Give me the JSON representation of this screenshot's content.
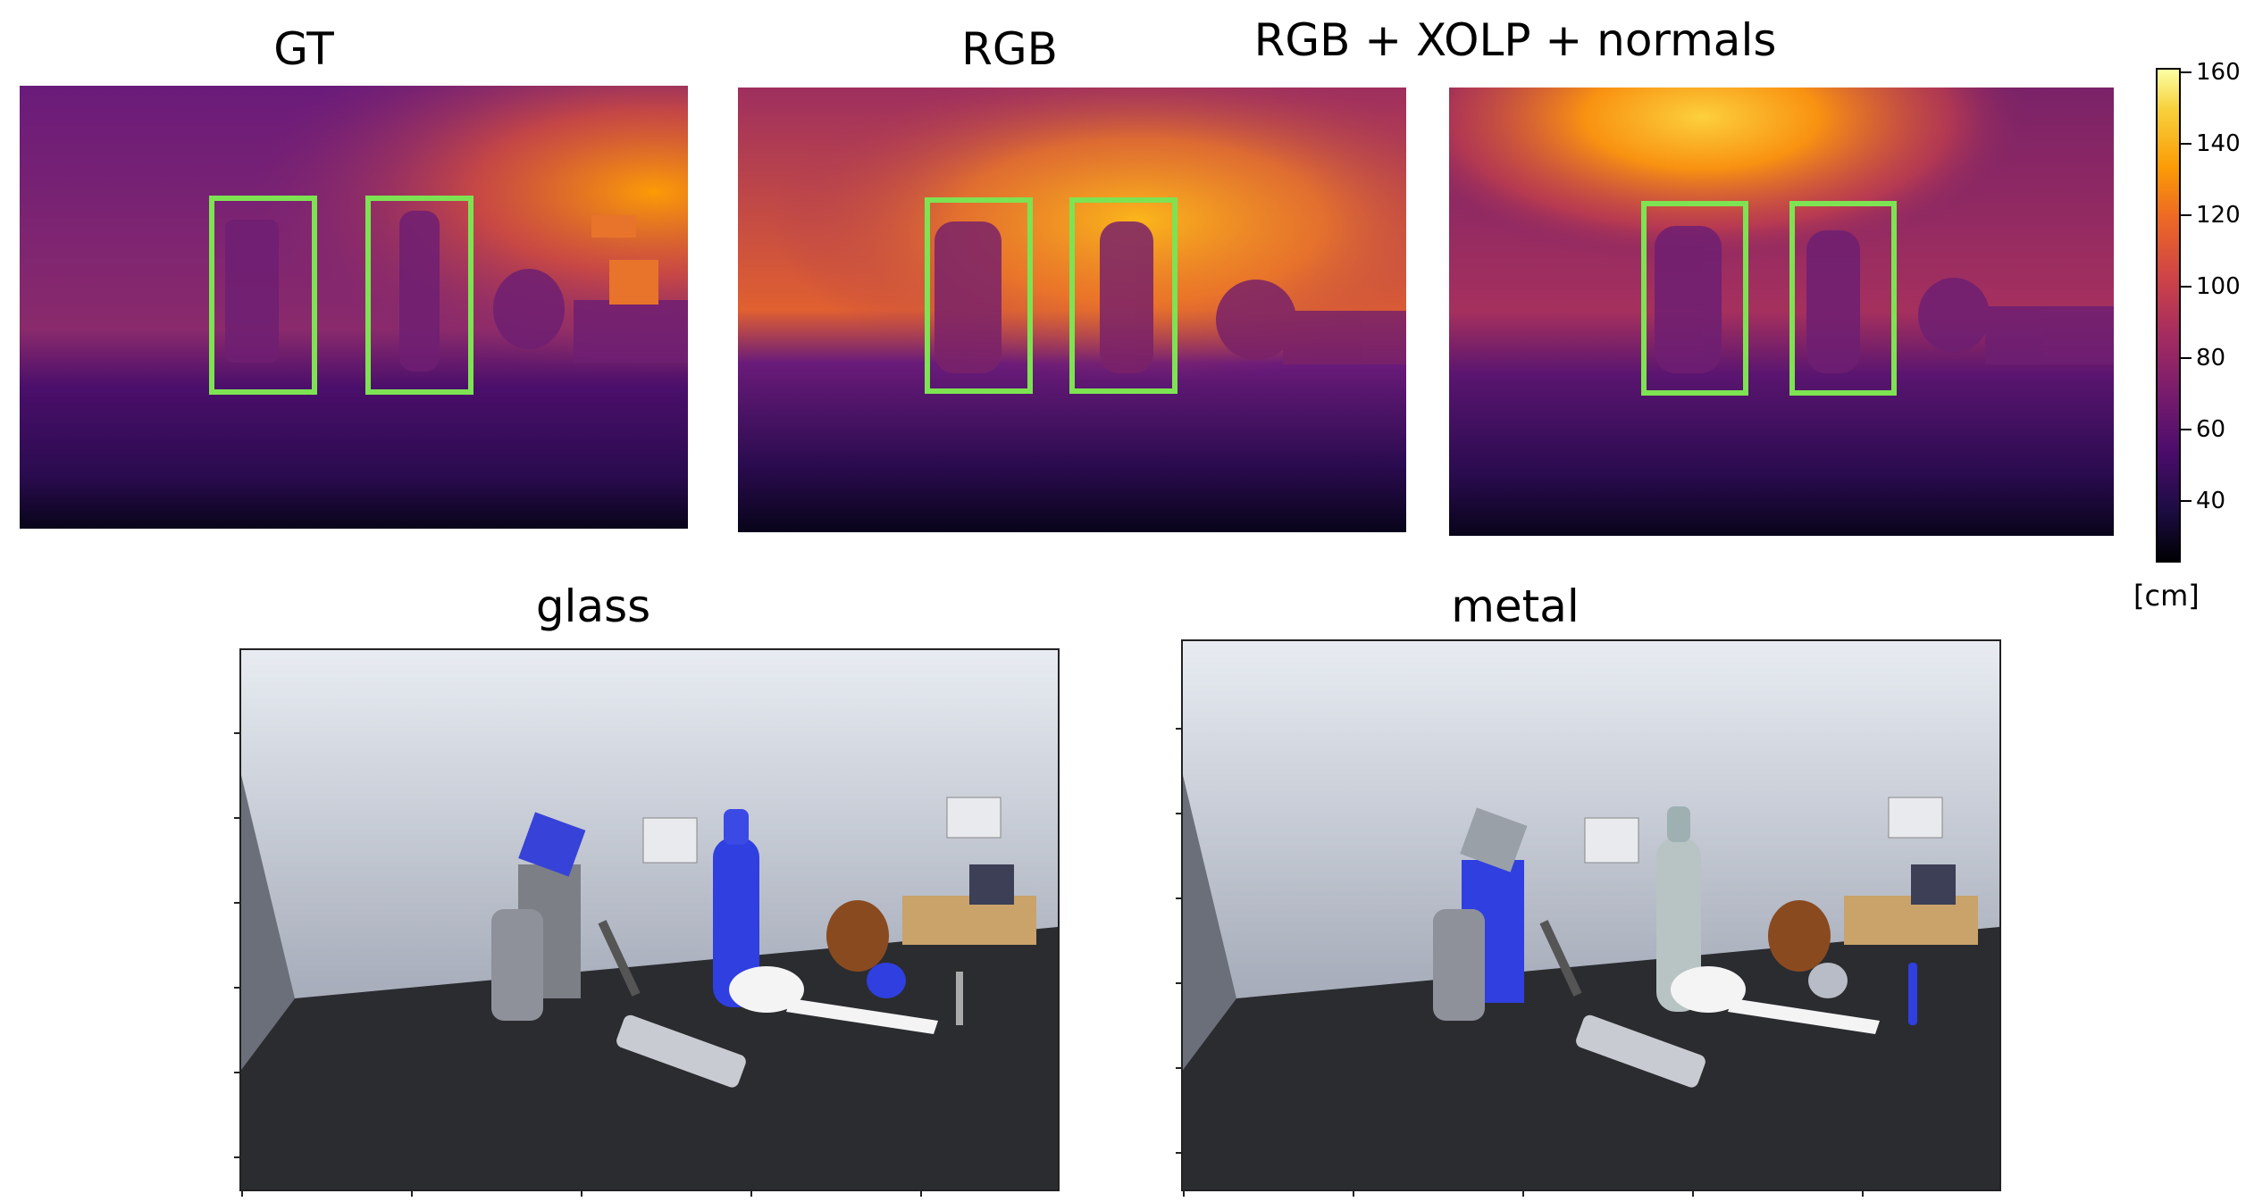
{
  "top_row": {
    "panels": [
      {
        "title": "GT"
      },
      {
        "title": "RGB"
      },
      {
        "title": "RGB + XOLP + normals"
      }
    ],
    "highlight_color": "#7de352",
    "colormap": "inferno"
  },
  "colorbar": {
    "ticks": [
      "160",
      "140",
      "120",
      "100",
      "80",
      "60",
      "40"
    ],
    "unit": "[cm]"
  },
  "bottom_row": {
    "panels": [
      {
        "title": "glass",
        "highlight_color": "#2f3fe0"
      },
      {
        "title": "metal",
        "highlight_color": "#2f3fe0"
      }
    ]
  }
}
